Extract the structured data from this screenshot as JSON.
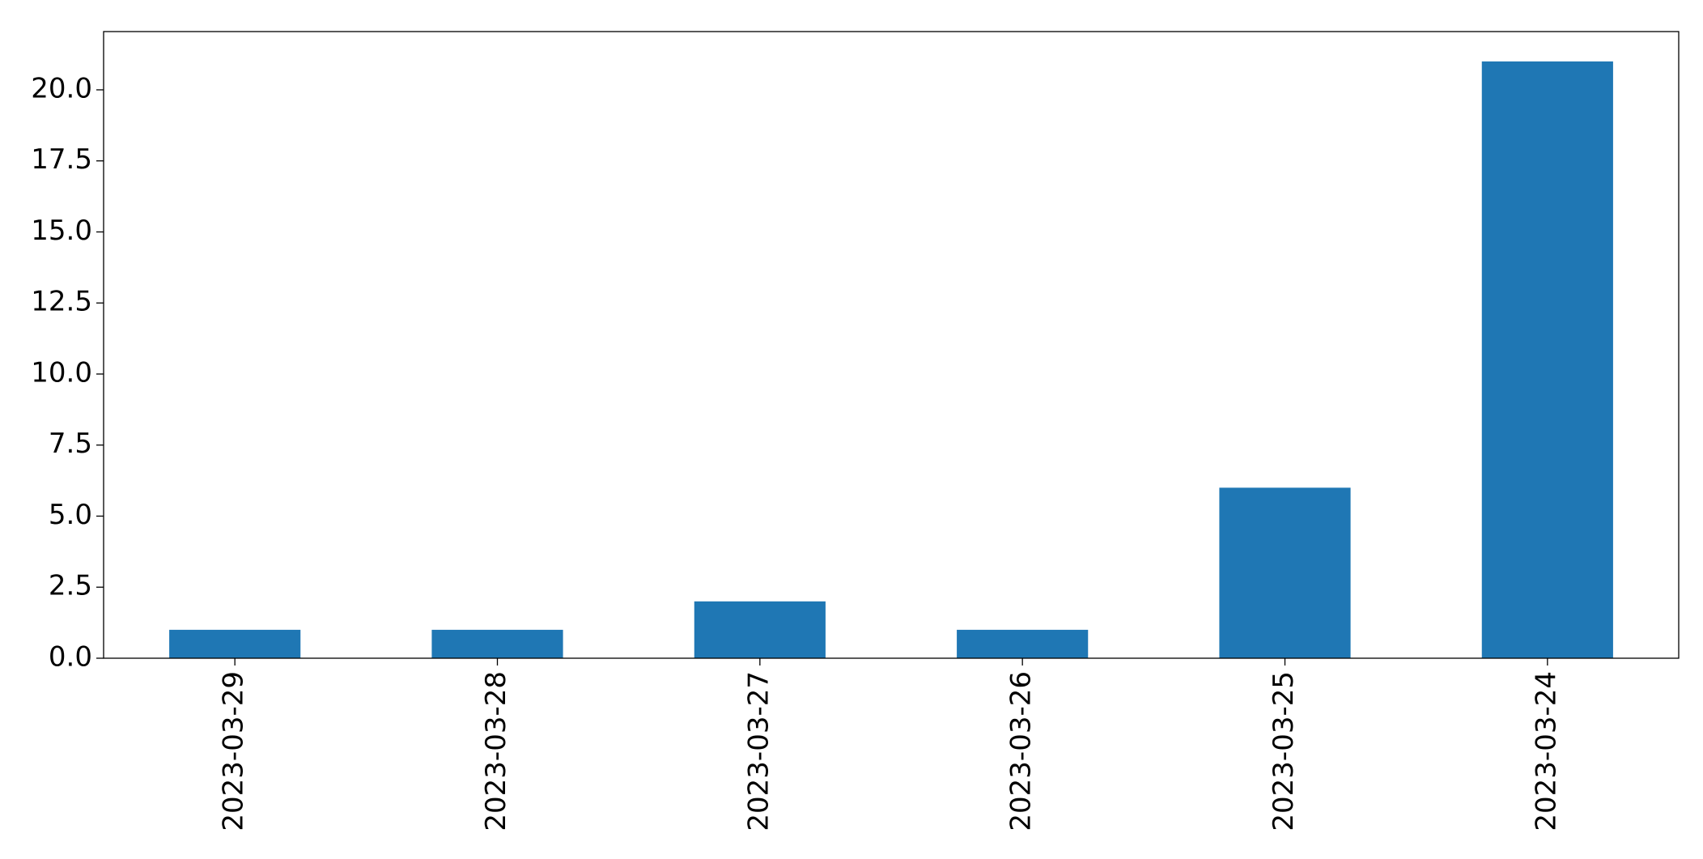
{
  "chart_data": {
    "type": "bar",
    "categories": [
      "2023-03-29",
      "2023-03-28",
      "2023-03-27",
      "2023-03-26",
      "2023-03-25",
      "2023-03-24"
    ],
    "values": [
      1,
      1,
      2,
      1,
      6,
      21
    ],
    "color": "#1f77b4",
    "ylim": [
      0,
      22.05
    ],
    "yticks": [
      {
        "value": 0,
        "label": "0.0"
      },
      2.5,
      {
        "value": 5,
        "label": "5.0"
      },
      7.5,
      {
        "value": 10,
        "label": "10.0"
      },
      12.5,
      {
        "value": 15,
        "label": "15.0"
      },
      17.5,
      {
        "value": 20,
        "label": "20.0"
      }
    ],
    "grid": false
  }
}
